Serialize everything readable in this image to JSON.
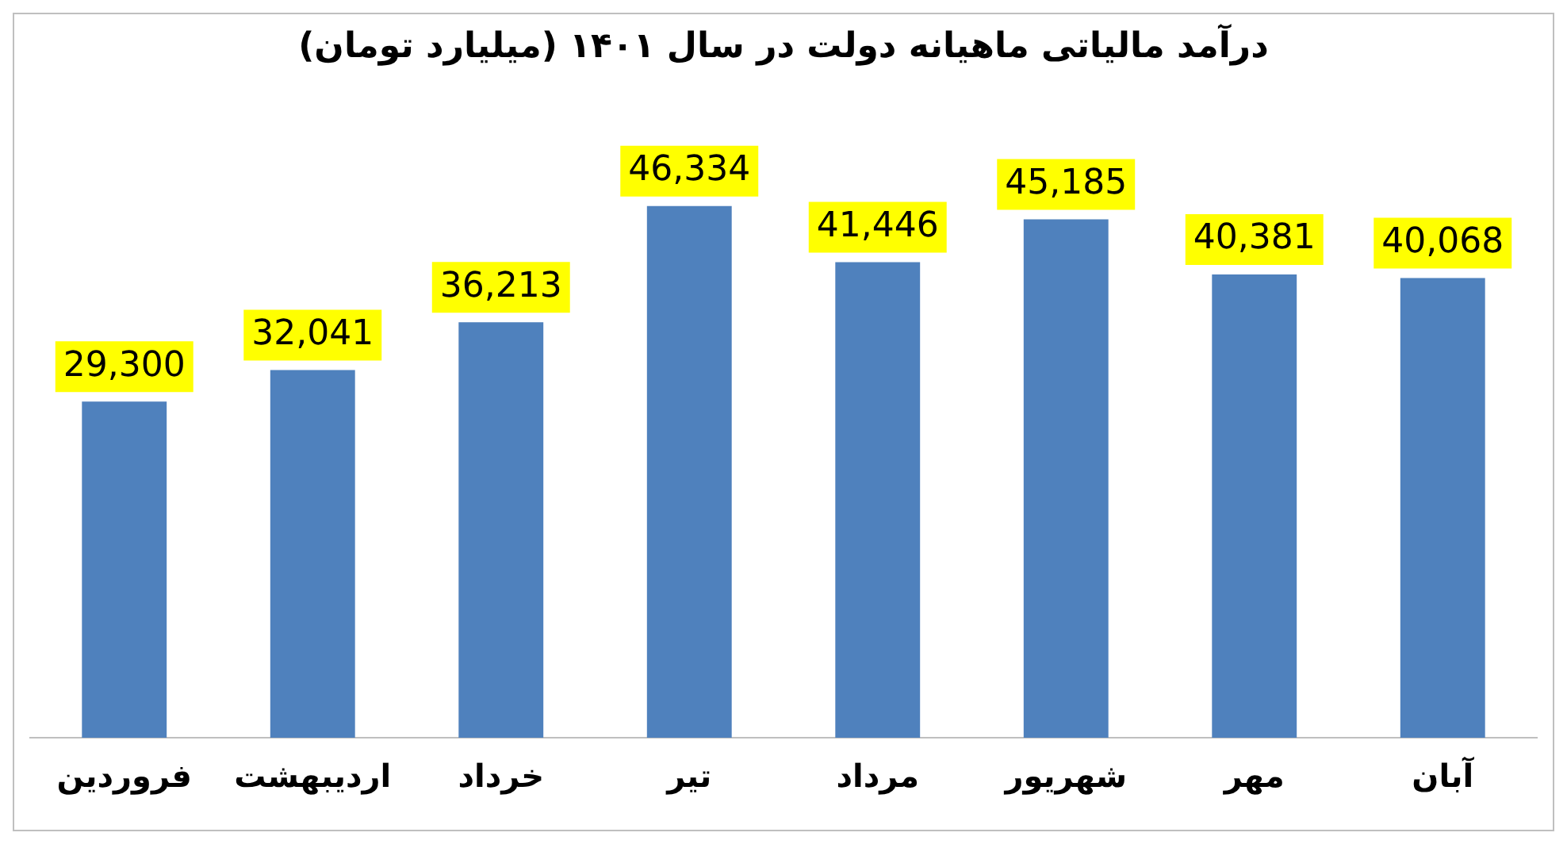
{
  "chart_data": {
    "type": "bar",
    "title": "درآمد مالیاتی ماهیانه دولت در سال ۱۴۰۱ (میلیارد تومان)",
    "categories": [
      "فروردین",
      "اردیبهشت",
      "خرداد",
      "تیر",
      "مرداد",
      "شهریور",
      "مهر",
      "آبان"
    ],
    "values": [
      29300,
      32041,
      36213,
      46334,
      41446,
      45185,
      40381,
      40068
    ],
    "value_labels": [
      "29,300",
      "32,041",
      "36,213",
      "46,334",
      "41,446",
      "45,185",
      "40,381",
      "40,068"
    ],
    "color": "#4f81bd",
    "grid": false,
    "legend": false
  }
}
